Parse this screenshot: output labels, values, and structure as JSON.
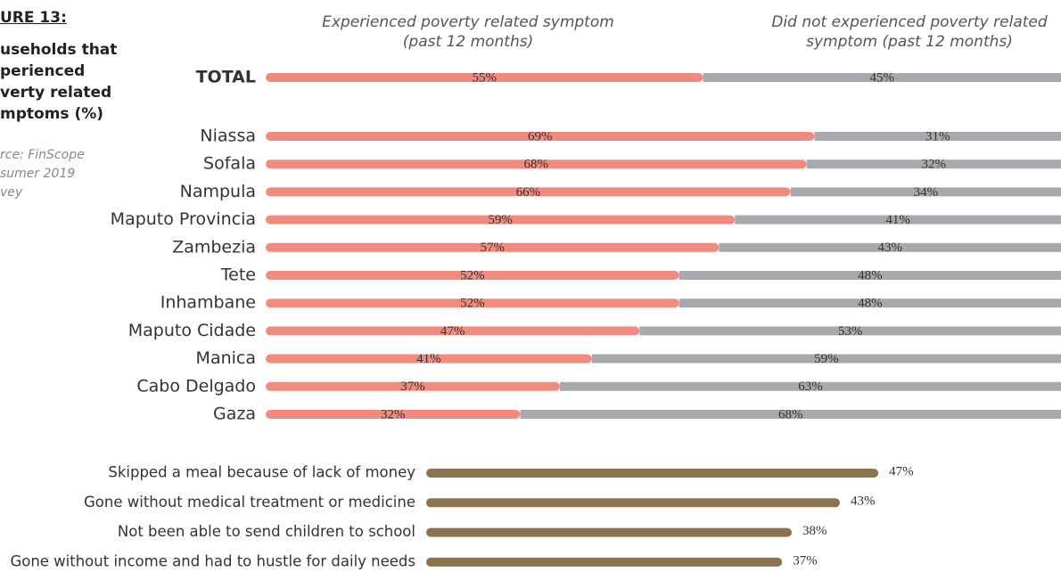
{
  "sidebar": {
    "figure": "URE 13:",
    "title_lines": [
      "useholds that",
      "perienced",
      "verty related",
      "mptoms (%)"
    ],
    "source_lines": [
      "rce: FinScope",
      "sumer 2019",
      "vey"
    ]
  },
  "chart_data": [
    {
      "type": "stacked-bar-horizontal",
      "categories": [
        "TOTAL",
        "Niassa",
        "Sofala",
        "Nampula",
        "Maputo Provincia",
        "Zambezia",
        "Tete",
        "Inhambane",
        "Maputo Cidade",
        "Manica",
        "Cabo Delgado",
        "Gaza"
      ],
      "xlim": [
        0,
        100
      ],
      "series": [
        {
          "name": "Experienced poverty related symptom (past 12 months)",
          "color": "#f28b7e",
          "values": [
            55,
            69,
            68,
            66,
            59,
            57,
            52,
            52,
            47,
            41,
            37,
            32
          ],
          "value_labels": [
            "55%",
            "69%",
            "68%",
            "66%",
            "59%",
            "57%",
            "52%",
            "52%",
            "47%",
            "41%",
            "37%",
            "32%"
          ]
        },
        {
          "name": "Did not experienced poverty related symptom (past 12 months)",
          "color": "#a9a9ad",
          "values": [
            45,
            31,
            32,
            34,
            41,
            43,
            48,
            48,
            53,
            59,
            63,
            68
          ],
          "value_labels": [
            "45%",
            "31%",
            "32%",
            "34%",
            "41%",
            "43%",
            "48%",
            "48%",
            "53%",
            "59%",
            "63%",
            "68%"
          ]
        }
      ]
    },
    {
      "type": "bar-horizontal",
      "categories": [
        "Skipped a meal because of lack of money",
        "Gone without medical treatment or medicine",
        "Not been able to send children to school",
        "Gone without income and had to hustle for daily needs"
      ],
      "color": "#8c7350",
      "values": [
        47,
        43,
        38,
        37
      ],
      "value_labels": [
        "47%",
        "43%",
        "38%",
        "37%"
      ]
    }
  ]
}
